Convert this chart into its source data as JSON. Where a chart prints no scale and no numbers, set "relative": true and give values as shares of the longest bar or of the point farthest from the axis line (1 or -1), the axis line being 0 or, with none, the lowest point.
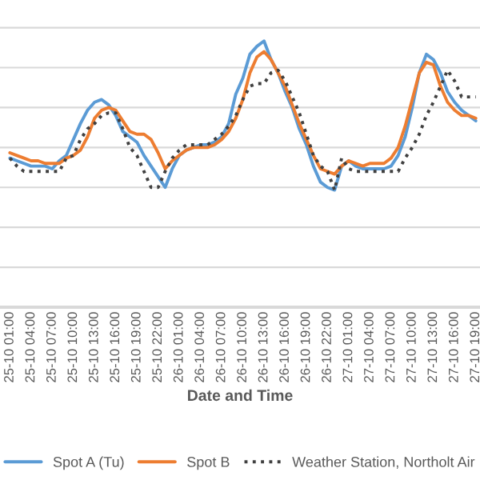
{
  "chart_data": {
    "type": "line",
    "xlabel": "Date and Time",
    "relative": true,
    "grid": "y",
    "legend": "bottom",
    "marker": "none",
    "categories": [
      "25-10 01:00",
      null,
      null,
      "25-10 04:00",
      null,
      null,
      "25-10 07:00",
      null,
      null,
      "25-10 10:00",
      null,
      null,
      "25-10 13:00",
      null,
      null,
      "25-10 16:00",
      null,
      null,
      "25-10 19:00",
      null,
      null,
      "25-10 22:00",
      null,
      null,
      "26-10 01:00",
      null,
      null,
      "26-10 04:00",
      null,
      null,
      "26-10 07:00",
      null,
      null,
      "26-10 10:00",
      null,
      null,
      "26-10 13:00",
      null,
      null,
      "26-10 16:00",
      null,
      null,
      "26-10 19:00",
      null,
      null,
      "26-10 22:00",
      null,
      null,
      "27-10 01:00",
      null,
      null,
      "27-10 04:00",
      null,
      null,
      "27-10 07:00",
      null,
      null,
      "27-10 10:00",
      null,
      null,
      "27-10 13:00",
      null,
      null,
      "27-10 16:00",
      null,
      null,
      "27-10 19:00"
    ],
    "series": [
      {
        "name": "Spot A (Tu)",
        "color": "#5b9bd5",
        "line_style": "solid",
        "values": [
          0.56,
          0.55,
          0.54,
          0.53,
          0.53,
          0.53,
          0.52,
          0.55,
          0.57,
          0.63,
          0.69,
          0.74,
          0.77,
          0.78,
          0.76,
          0.72,
          0.66,
          0.64,
          0.62,
          0.57,
          0.53,
          0.49,
          0.45,
          0.52,
          0.57,
          0.59,
          0.6,
          0.61,
          0.61,
          0.62,
          0.64,
          0.69,
          0.8,
          0.86,
          0.95,
          0.98,
          1.0,
          0.93,
          0.88,
          0.81,
          0.75,
          0.67,
          0.61,
          0.53,
          0.47,
          0.45,
          0.44,
          0.53,
          0.55,
          0.53,
          0.52,
          0.52,
          0.52,
          0.52,
          0.53,
          0.57,
          0.64,
          0.75,
          0.88,
          0.95,
          0.93,
          0.88,
          0.81,
          0.77,
          0.74,
          0.72,
          0.7
        ]
      },
      {
        "name": "Spot B",
        "color": "#ed7d31",
        "line_style": "solid",
        "values": [
          0.58,
          0.57,
          0.56,
          0.55,
          0.55,
          0.54,
          0.54,
          0.54,
          0.56,
          0.57,
          0.59,
          0.64,
          0.71,
          0.74,
          0.75,
          0.74,
          0.7,
          0.66,
          0.65,
          0.65,
          0.63,
          0.58,
          0.52,
          0.55,
          0.57,
          0.59,
          0.6,
          0.6,
          0.6,
          0.61,
          0.63,
          0.66,
          0.71,
          0.78,
          0.88,
          0.94,
          0.96,
          0.93,
          0.88,
          0.83,
          0.76,
          0.69,
          0.63,
          0.57,
          0.52,
          0.51,
          0.5,
          0.53,
          0.55,
          0.54,
          0.53,
          0.54,
          0.54,
          0.54,
          0.56,
          0.6,
          0.68,
          0.78,
          0.88,
          0.92,
          0.91,
          0.83,
          0.77,
          0.74,
          0.72,
          0.72,
          0.71
        ]
      },
      {
        "name": "Weather Station, Northolt Air",
        "color": "#404040",
        "line_style": "dotted",
        "values": [
          0.56,
          0.53,
          0.51,
          0.51,
          0.51,
          0.51,
          0.51,
          0.51,
          0.56,
          0.57,
          0.63,
          0.67,
          0.69,
          0.72,
          0.73,
          0.73,
          0.67,
          0.6,
          0.57,
          0.51,
          0.45,
          0.45,
          0.51,
          0.56,
          0.59,
          0.61,
          0.61,
          0.61,
          0.61,
          0.63,
          0.65,
          0.68,
          0.72,
          0.78,
          0.83,
          0.84,
          0.84,
          0.88,
          0.89,
          0.85,
          0.79,
          0.73,
          0.65,
          0.57,
          0.53,
          0.51,
          0.44,
          0.56,
          0.52,
          0.51,
          0.51,
          0.51,
          0.51,
          0.51,
          0.51,
          0.51,
          0.56,
          0.6,
          0.65,
          0.72,
          0.77,
          0.83,
          0.89,
          0.85,
          0.79,
          0.79,
          0.79
        ]
      }
    ]
  }
}
